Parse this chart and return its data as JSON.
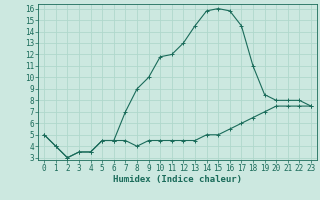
{
  "xlabel": "Humidex (Indice chaleur)",
  "background_color": "#cce8e0",
  "line_color": "#1a6b5a",
  "grid_color": "#b0d8cc",
  "xlim": [
    -0.5,
    23.5
  ],
  "ylim": [
    2.8,
    16.4
  ],
  "yticks": [
    3,
    4,
    5,
    6,
    7,
    8,
    9,
    10,
    11,
    12,
    13,
    14,
    15,
    16
  ],
  "xticks": [
    0,
    1,
    2,
    3,
    4,
    5,
    6,
    7,
    8,
    9,
    10,
    11,
    12,
    13,
    14,
    15,
    16,
    17,
    18,
    19,
    20,
    21,
    22,
    23
  ],
  "line1_x": [
    0,
    1,
    2,
    3,
    4,
    5,
    6,
    7,
    8,
    9,
    10,
    11,
    12,
    13,
    14,
    15,
    16,
    17,
    18,
    19,
    20,
    21,
    22,
    23
  ],
  "line1_y": [
    5.0,
    4.0,
    3.0,
    3.5,
    3.5,
    4.5,
    4.5,
    4.5,
    4.0,
    4.5,
    4.5,
    4.5,
    4.5,
    4.5,
    5.0,
    5.0,
    5.5,
    6.0,
    6.5,
    7.0,
    7.5,
    7.5,
    7.5,
    7.5
  ],
  "line2_x": [
    0,
    1,
    2,
    3,
    4,
    5,
    6,
    7,
    8,
    9,
    10,
    11,
    12,
    13,
    14,
    15,
    16,
    17,
    18,
    19,
    20,
    21,
    22,
    23
  ],
  "line2_y": [
    5.0,
    4.0,
    3.0,
    3.5,
    3.5,
    4.5,
    4.5,
    7.0,
    9.0,
    10.0,
    11.8,
    12.0,
    13.0,
    14.5,
    15.8,
    16.0,
    15.8,
    14.5,
    11.0,
    8.5,
    8.0,
    8.0,
    8.0,
    7.5
  ],
  "tick_fontsize": 5.5,
  "xlabel_fontsize": 6.5
}
